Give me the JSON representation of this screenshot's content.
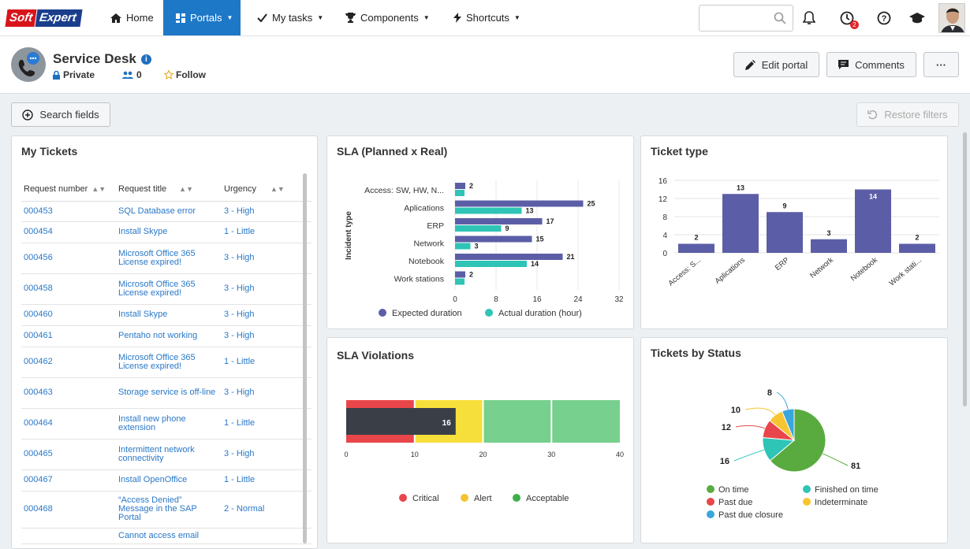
{
  "brand": {
    "logo_part1": "Soft",
    "logo_part2": "Expert"
  },
  "nav": {
    "home": "Home",
    "portals": "Portals",
    "my_tasks": "My tasks",
    "components": "Components",
    "shortcuts": "Shortcuts"
  },
  "topbar": {
    "search_placeholder": "",
    "notification_count": "2"
  },
  "portal": {
    "title": "Service Desk",
    "privacy": "Private",
    "members": "0",
    "follow": "Follow"
  },
  "actions": {
    "edit_portal": "Edit portal",
    "comments": "Comments",
    "more": "···",
    "search_fields": "Search fields",
    "restore_filters": "Restore filters"
  },
  "colors": {
    "accent": "#1d78c7",
    "purple": "#5b5ea6",
    "teal": "#2ec4b6",
    "critical": "#e8464b",
    "alert": "#f7df3b",
    "acceptable": "#77d08e",
    "dark_bar": "#3a3f47"
  },
  "tickets": {
    "title": "My Tickets",
    "columns": [
      "Request number",
      "Request title",
      "Urgency"
    ],
    "rows": [
      {
        "number": "000453",
        "title": "SQL Database error",
        "urgency": "3 - High"
      },
      {
        "number": "000454",
        "title": "Install Skype",
        "urgency": "1 - Little"
      },
      {
        "number": "000456",
        "title": "Microsoft Office 365 License expired!",
        "urgency": "3 - High"
      },
      {
        "number": "000458",
        "title": "Microsoft Office 365 License expired!",
        "urgency": "3 - High"
      },
      {
        "number": "000460",
        "title": "Install Skype",
        "urgency": "3 - High"
      },
      {
        "number": "000461",
        "title": "Pentaho not working",
        "urgency": "3 - High"
      },
      {
        "number": "000462",
        "title": "Microsoft Office 365 License expired!",
        "urgency": "1 - Little"
      },
      {
        "number": "000463",
        "title": "Storage service is off-line",
        "urgency": "3 - High"
      },
      {
        "number": "000464",
        "title": "Install new phone extension",
        "urgency": "1 - Little"
      },
      {
        "number": "000465",
        "title": "Intermittent network connectivity",
        "urgency": "3 - High"
      },
      {
        "number": "000467",
        "title": "Install OpenOffice",
        "urgency": "1 - Little"
      },
      {
        "number": "000468",
        "title": "“Access Denied” Message in the SAP Portal",
        "urgency": "2 - Normal"
      },
      {
        "number": "",
        "title": "Cannot access email",
        "urgency": ""
      }
    ]
  },
  "chart_data": [
    {
      "type": "bar",
      "orientation": "horizontal",
      "title": "SLA (Planned x Real)",
      "ylabel": "Incident type",
      "xlabel": "",
      "categories": [
        "Access: SW, HW, N...",
        "Aplications",
        "ERP",
        "Network",
        "Notebook",
        "Work stations"
      ],
      "series": [
        {
          "name": "Expected duration",
          "values": [
            2,
            25,
            17,
            15,
            21,
            2
          ],
          "color": "#5b5ea6"
        },
        {
          "name": "Actual duration (hour)",
          "values": [
            null,
            13,
            9,
            3,
            14,
            null
          ],
          "color": "#2ec4b6"
        }
      ],
      "xlim": [
        0,
        32
      ],
      "xticks": [
        "0",
        "8",
        "16",
        "24",
        "32"
      ],
      "grid": true,
      "legend": "bottom"
    },
    {
      "type": "bar",
      "title": "Ticket type",
      "categories": [
        "Access: S...",
        "Aplications",
        "ERP",
        "Network",
        "Notebook",
        "Work stati..."
      ],
      "values": [
        2,
        13,
        9,
        3,
        14,
        2
      ],
      "ylim": [
        0,
        16
      ],
      "yticks": [
        "0",
        "4",
        "8",
        "12",
        "16"
      ],
      "color": "#5b5ea6",
      "grid": true
    },
    {
      "type": "bar",
      "orientation": "horizontal",
      "title": "SLA Violations",
      "value": 16,
      "xlim": [
        0,
        40
      ],
      "xticks": [
        "0",
        "10",
        "20",
        "30",
        "40"
      ],
      "bands": [
        {
          "name": "Critical",
          "from": 0,
          "to": 10,
          "color": "#e8464b"
        },
        {
          "name": "Alert",
          "from": 10,
          "to": 20,
          "color": "#f7df3b"
        },
        {
          "name": "Acceptable",
          "from": 20,
          "to": 40,
          "color": "#77d08e"
        }
      ],
      "legend": "bottom"
    },
    {
      "type": "pie",
      "title": "Tickets by Status",
      "slices": [
        {
          "name": "On time",
          "value": 81,
          "color": "#5aab3f"
        },
        {
          "name": "Finished on time",
          "value": 16,
          "color": "#2ec4b6"
        },
        {
          "name": "Past due",
          "value": 12,
          "color": "#e8464b"
        },
        {
          "name": "Indeterminate",
          "value": 10,
          "color": "#f7c531"
        },
        {
          "name": "Past due closure",
          "value": 8,
          "color": "#39a6dc"
        }
      ],
      "legend": "bottom"
    }
  ]
}
